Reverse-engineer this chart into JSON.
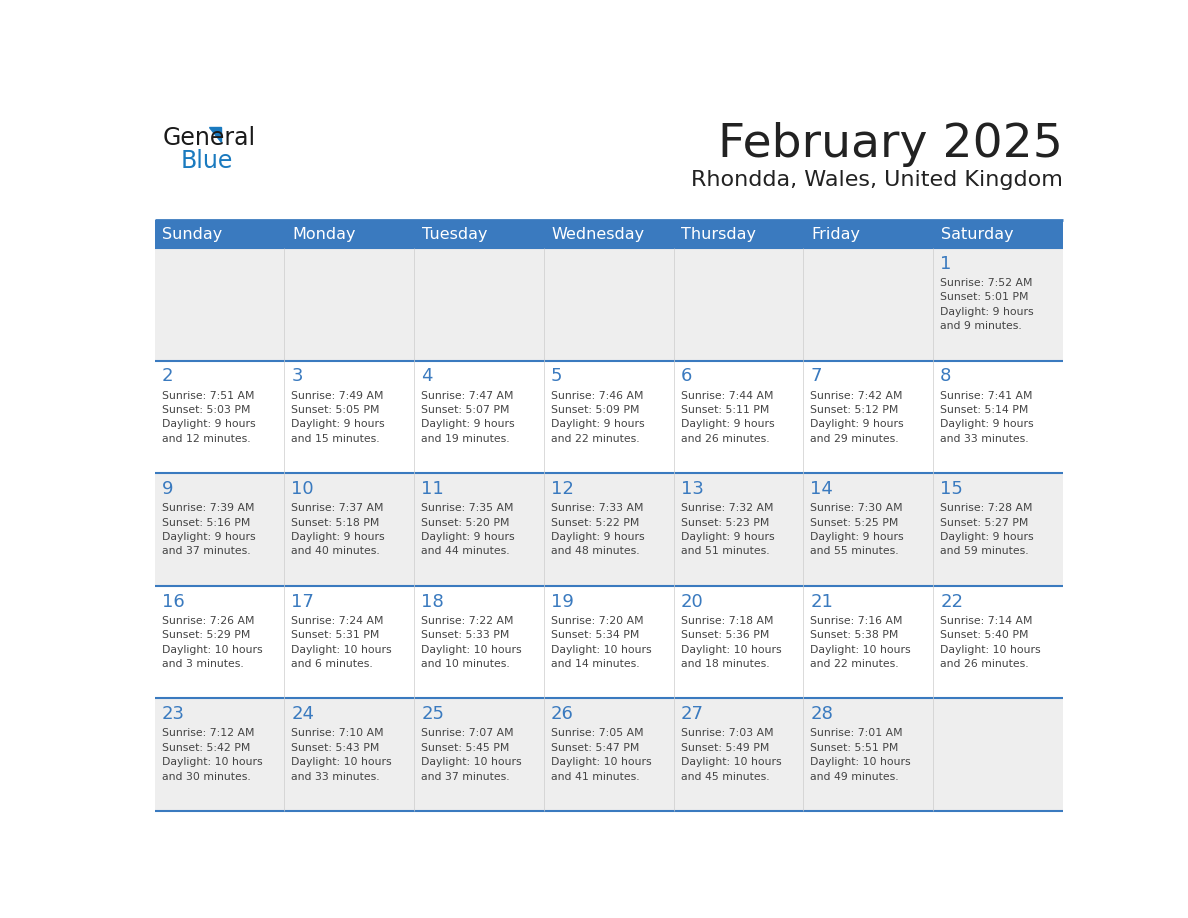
{
  "title": "February 2025",
  "subtitle": "Rhondda, Wales, United Kingdom",
  "header_bg_color": "#3a7abf",
  "header_text_color": "#ffffff",
  "day_names": [
    "Sunday",
    "Monday",
    "Tuesday",
    "Wednesday",
    "Thursday",
    "Friday",
    "Saturday"
  ],
  "cell_bg_color": "#ffffff",
  "alt_cell_bg_color": "#eeeeee",
  "grid_line_color": "#3a7abf",
  "date_text_color": "#3a7abf",
  "info_text_color": "#444444",
  "title_color": "#222222",
  "subtitle_color": "#222222",
  "logo_general_color": "#1a1a1a",
  "logo_blue_color": "#1a7abf",
  "logo_triangle_color": "#1a7abf",
  "weeks": [
    [
      {
        "day": null,
        "info": ""
      },
      {
        "day": null,
        "info": ""
      },
      {
        "day": null,
        "info": ""
      },
      {
        "day": null,
        "info": ""
      },
      {
        "day": null,
        "info": ""
      },
      {
        "day": null,
        "info": ""
      },
      {
        "day": 1,
        "info": "Sunrise: 7:52 AM\nSunset: 5:01 PM\nDaylight: 9 hours\nand 9 minutes."
      }
    ],
    [
      {
        "day": 2,
        "info": "Sunrise: 7:51 AM\nSunset: 5:03 PM\nDaylight: 9 hours\nand 12 minutes."
      },
      {
        "day": 3,
        "info": "Sunrise: 7:49 AM\nSunset: 5:05 PM\nDaylight: 9 hours\nand 15 minutes."
      },
      {
        "day": 4,
        "info": "Sunrise: 7:47 AM\nSunset: 5:07 PM\nDaylight: 9 hours\nand 19 minutes."
      },
      {
        "day": 5,
        "info": "Sunrise: 7:46 AM\nSunset: 5:09 PM\nDaylight: 9 hours\nand 22 minutes."
      },
      {
        "day": 6,
        "info": "Sunrise: 7:44 AM\nSunset: 5:11 PM\nDaylight: 9 hours\nand 26 minutes."
      },
      {
        "day": 7,
        "info": "Sunrise: 7:42 AM\nSunset: 5:12 PM\nDaylight: 9 hours\nand 29 minutes."
      },
      {
        "day": 8,
        "info": "Sunrise: 7:41 AM\nSunset: 5:14 PM\nDaylight: 9 hours\nand 33 minutes."
      }
    ],
    [
      {
        "day": 9,
        "info": "Sunrise: 7:39 AM\nSunset: 5:16 PM\nDaylight: 9 hours\nand 37 minutes."
      },
      {
        "day": 10,
        "info": "Sunrise: 7:37 AM\nSunset: 5:18 PM\nDaylight: 9 hours\nand 40 minutes."
      },
      {
        "day": 11,
        "info": "Sunrise: 7:35 AM\nSunset: 5:20 PM\nDaylight: 9 hours\nand 44 minutes."
      },
      {
        "day": 12,
        "info": "Sunrise: 7:33 AM\nSunset: 5:22 PM\nDaylight: 9 hours\nand 48 minutes."
      },
      {
        "day": 13,
        "info": "Sunrise: 7:32 AM\nSunset: 5:23 PM\nDaylight: 9 hours\nand 51 minutes."
      },
      {
        "day": 14,
        "info": "Sunrise: 7:30 AM\nSunset: 5:25 PM\nDaylight: 9 hours\nand 55 minutes."
      },
      {
        "day": 15,
        "info": "Sunrise: 7:28 AM\nSunset: 5:27 PM\nDaylight: 9 hours\nand 59 minutes."
      }
    ],
    [
      {
        "day": 16,
        "info": "Sunrise: 7:26 AM\nSunset: 5:29 PM\nDaylight: 10 hours\nand 3 minutes."
      },
      {
        "day": 17,
        "info": "Sunrise: 7:24 AM\nSunset: 5:31 PM\nDaylight: 10 hours\nand 6 minutes."
      },
      {
        "day": 18,
        "info": "Sunrise: 7:22 AM\nSunset: 5:33 PM\nDaylight: 10 hours\nand 10 minutes."
      },
      {
        "day": 19,
        "info": "Sunrise: 7:20 AM\nSunset: 5:34 PM\nDaylight: 10 hours\nand 14 minutes."
      },
      {
        "day": 20,
        "info": "Sunrise: 7:18 AM\nSunset: 5:36 PM\nDaylight: 10 hours\nand 18 minutes."
      },
      {
        "day": 21,
        "info": "Sunrise: 7:16 AM\nSunset: 5:38 PM\nDaylight: 10 hours\nand 22 minutes."
      },
      {
        "day": 22,
        "info": "Sunrise: 7:14 AM\nSunset: 5:40 PM\nDaylight: 10 hours\nand 26 minutes."
      }
    ],
    [
      {
        "day": 23,
        "info": "Sunrise: 7:12 AM\nSunset: 5:42 PM\nDaylight: 10 hours\nand 30 minutes."
      },
      {
        "day": 24,
        "info": "Sunrise: 7:10 AM\nSunset: 5:43 PM\nDaylight: 10 hours\nand 33 minutes."
      },
      {
        "day": 25,
        "info": "Sunrise: 7:07 AM\nSunset: 5:45 PM\nDaylight: 10 hours\nand 37 minutes."
      },
      {
        "day": 26,
        "info": "Sunrise: 7:05 AM\nSunset: 5:47 PM\nDaylight: 10 hours\nand 41 minutes."
      },
      {
        "day": 27,
        "info": "Sunrise: 7:03 AM\nSunset: 5:49 PM\nDaylight: 10 hours\nand 45 minutes."
      },
      {
        "day": 28,
        "info": "Sunrise: 7:01 AM\nSunset: 5:51 PM\nDaylight: 10 hours\nand 49 minutes."
      },
      {
        "day": null,
        "info": ""
      }
    ]
  ]
}
